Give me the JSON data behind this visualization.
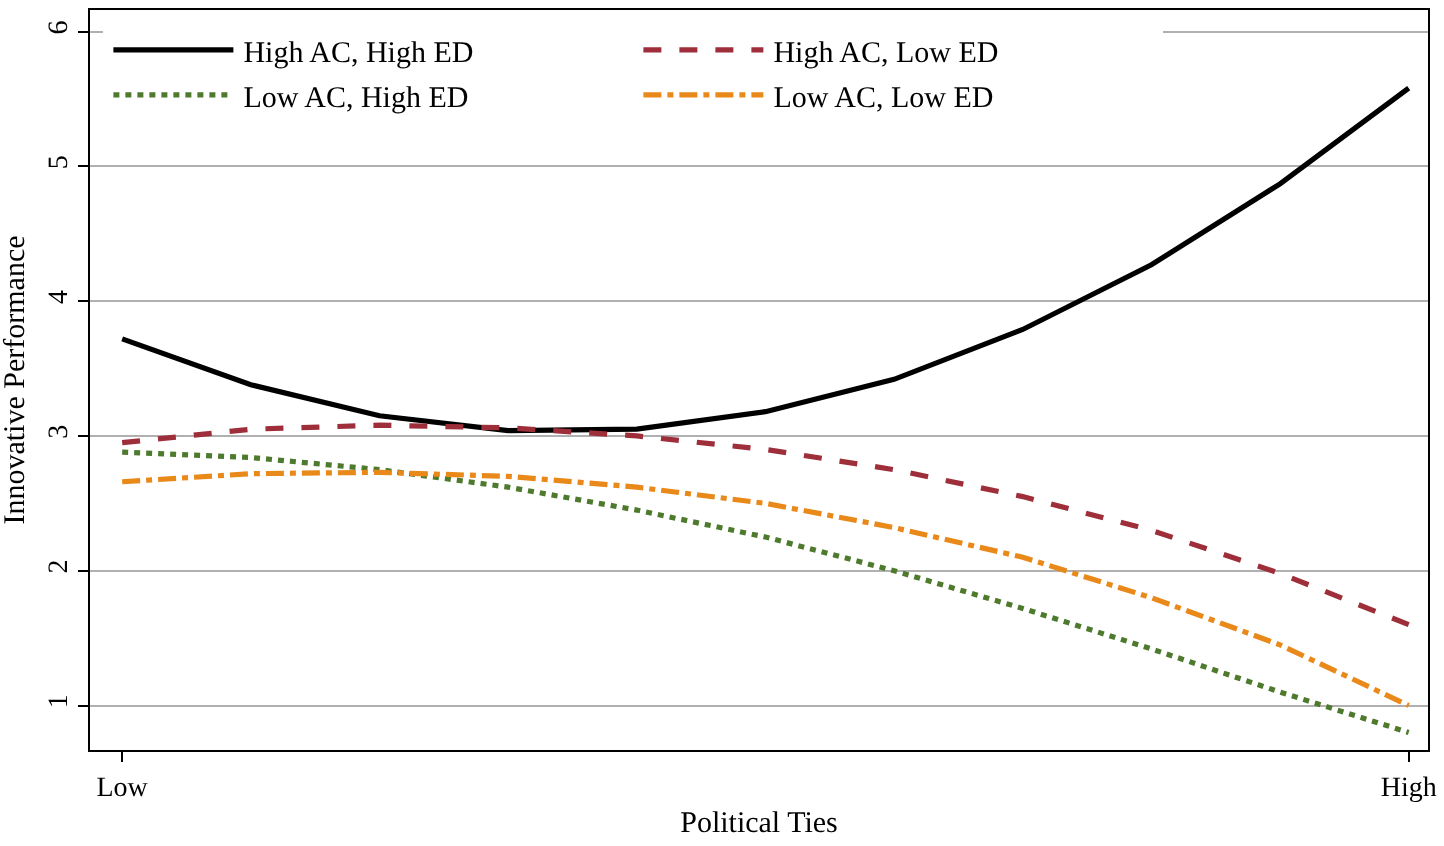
{
  "chart_data": {
    "type": "line",
    "xlabel": "Political Ties",
    "ylabel": "Innovative Performance",
    "categories": [
      "Low",
      null,
      null,
      null,
      null,
      null,
      null,
      null,
      null,
      null,
      "High"
    ],
    "series": [
      {
        "name": "High AC, High ED",
        "color": "#000000",
        "line_style": "solid",
        "values": [
          3.72,
          3.38,
          3.15,
          3.04,
          3.05,
          3.18,
          3.42,
          3.79,
          4.27,
          4.87,
          5.58
        ]
      },
      {
        "name": "High AC, Low ED",
        "color": "#9e2f3a",
        "line_style": "dashed",
        "values": [
          2.95,
          3.05,
          3.08,
          3.06,
          3.0,
          2.9,
          2.75,
          2.55,
          2.3,
          1.98,
          1.6
        ]
      },
      {
        "name": "Low AC, High ED",
        "color": "#4e7a2e",
        "line_style": "dotted",
        "values": [
          2.88,
          2.84,
          2.75,
          2.62,
          2.45,
          2.25,
          2.0,
          1.72,
          1.42,
          1.1,
          0.8
        ]
      },
      {
        "name": "Low AC, Low ED",
        "color": "#e8891a",
        "line_style": "dashdot",
        "values": [
          2.66,
          2.72,
          2.73,
          2.7,
          2.62,
          2.5,
          2.32,
          2.1,
          1.8,
          1.45,
          1.0
        ]
      }
    ],
    "ylim": [
      0.67,
      6.16
    ],
    "yticks": [
      1,
      2,
      3,
      4,
      5,
      6
    ],
    "grid": "y",
    "legend": "top left",
    "marker": "none"
  }
}
